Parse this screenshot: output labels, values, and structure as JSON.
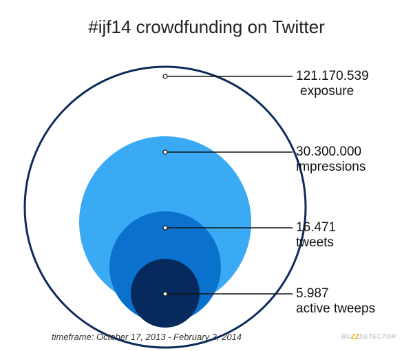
{
  "chart_data": {
    "type": "nested-bubble",
    "title": "#ijf14 crowdfunding on Twitter",
    "series": [
      {
        "value_label": "121.170.539",
        "name": "exposure",
        "value": 121170539,
        "color": "#0c2a5a",
        "style": "outline"
      },
      {
        "value_label": "30.300.000",
        "name": "impressions",
        "value": 30300000,
        "color": "#3aaaf5",
        "style": "filled"
      },
      {
        "value_label": "16.471",
        "name": "tweets",
        "value": 16471,
        "color": "#0a72cc",
        "style": "filled"
      },
      {
        "value_label": "5.987",
        "name": "active tweeps",
        "value": 5987,
        "color": "#062a5e",
        "style": "filled"
      }
    ]
  },
  "footer": {
    "timeframe": "timeframe: October 17, 2013 - February 2, 2014",
    "brand_prefix": "BU",
    "brand_accent": "ZZ",
    "brand_suffix": "DETECTOR"
  }
}
